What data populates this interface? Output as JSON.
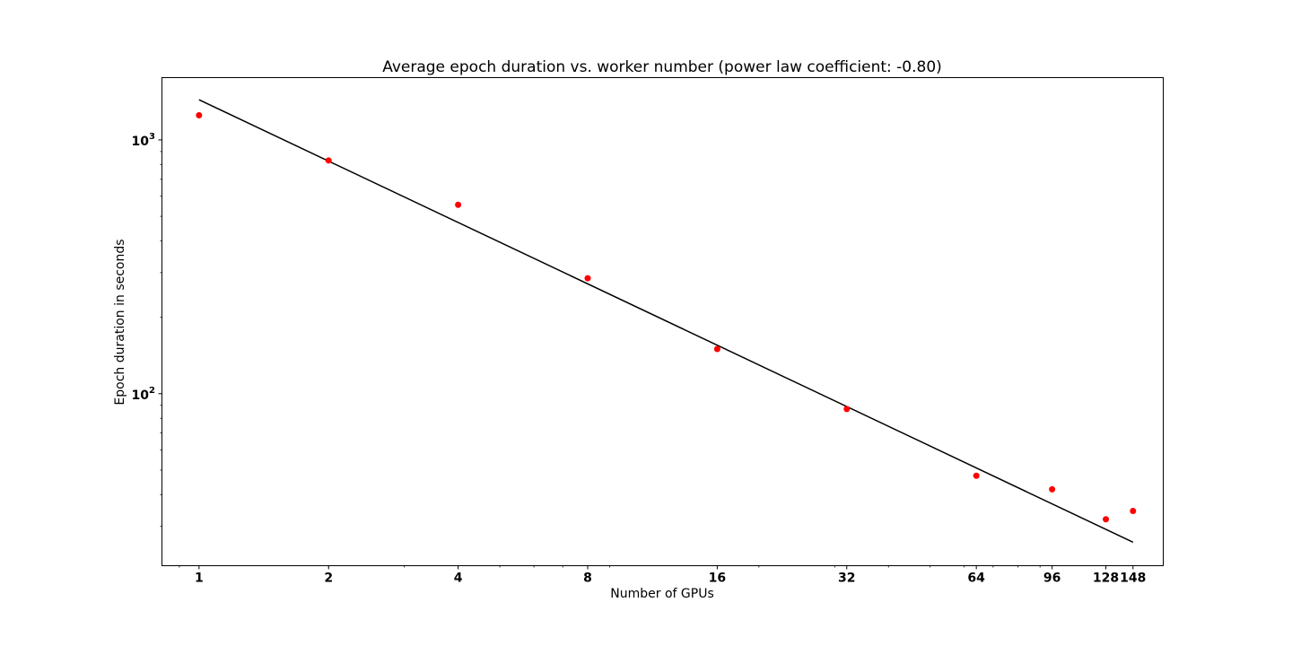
{
  "chart_data": {
    "type": "scatter",
    "title": "Average epoch duration vs. worker number (power law coefficient: -0.80)",
    "xlabel": "Number of GPUs",
    "ylabel": "Epoch duration in seconds",
    "xscale": "log",
    "yscale": "log",
    "xlim": [
      0.82,
      174
    ],
    "ylim": [
      21,
      1760
    ],
    "grid": false,
    "x_ticks": [
      1,
      2,
      4,
      8,
      16,
      32,
      64,
      96,
      128,
      148
    ],
    "x_tick_labels": [
      "1",
      "2",
      "4",
      "8",
      "16",
      "32",
      "64",
      "96",
      "128",
      "148"
    ],
    "y_major_ticks": [
      {
        "value": 100,
        "base": "10",
        "exp": "2"
      },
      {
        "value": 1000,
        "base": "10",
        "exp": "3"
      }
    ],
    "series": [
      {
        "kind": "points",
        "color": "#ff0000",
        "x": [
          1,
          2,
          4,
          8,
          16,
          32,
          64,
          96,
          128,
          148
        ],
        "y": [
          1250,
          830,
          555,
          285,
          150,
          87,
          47.5,
          42,
          32,
          34.5
        ]
      },
      {
        "kind": "fit-line",
        "color": "#000000",
        "x": [
          1,
          148
        ],
        "y": [
          1440,
          26
        ]
      }
    ]
  }
}
